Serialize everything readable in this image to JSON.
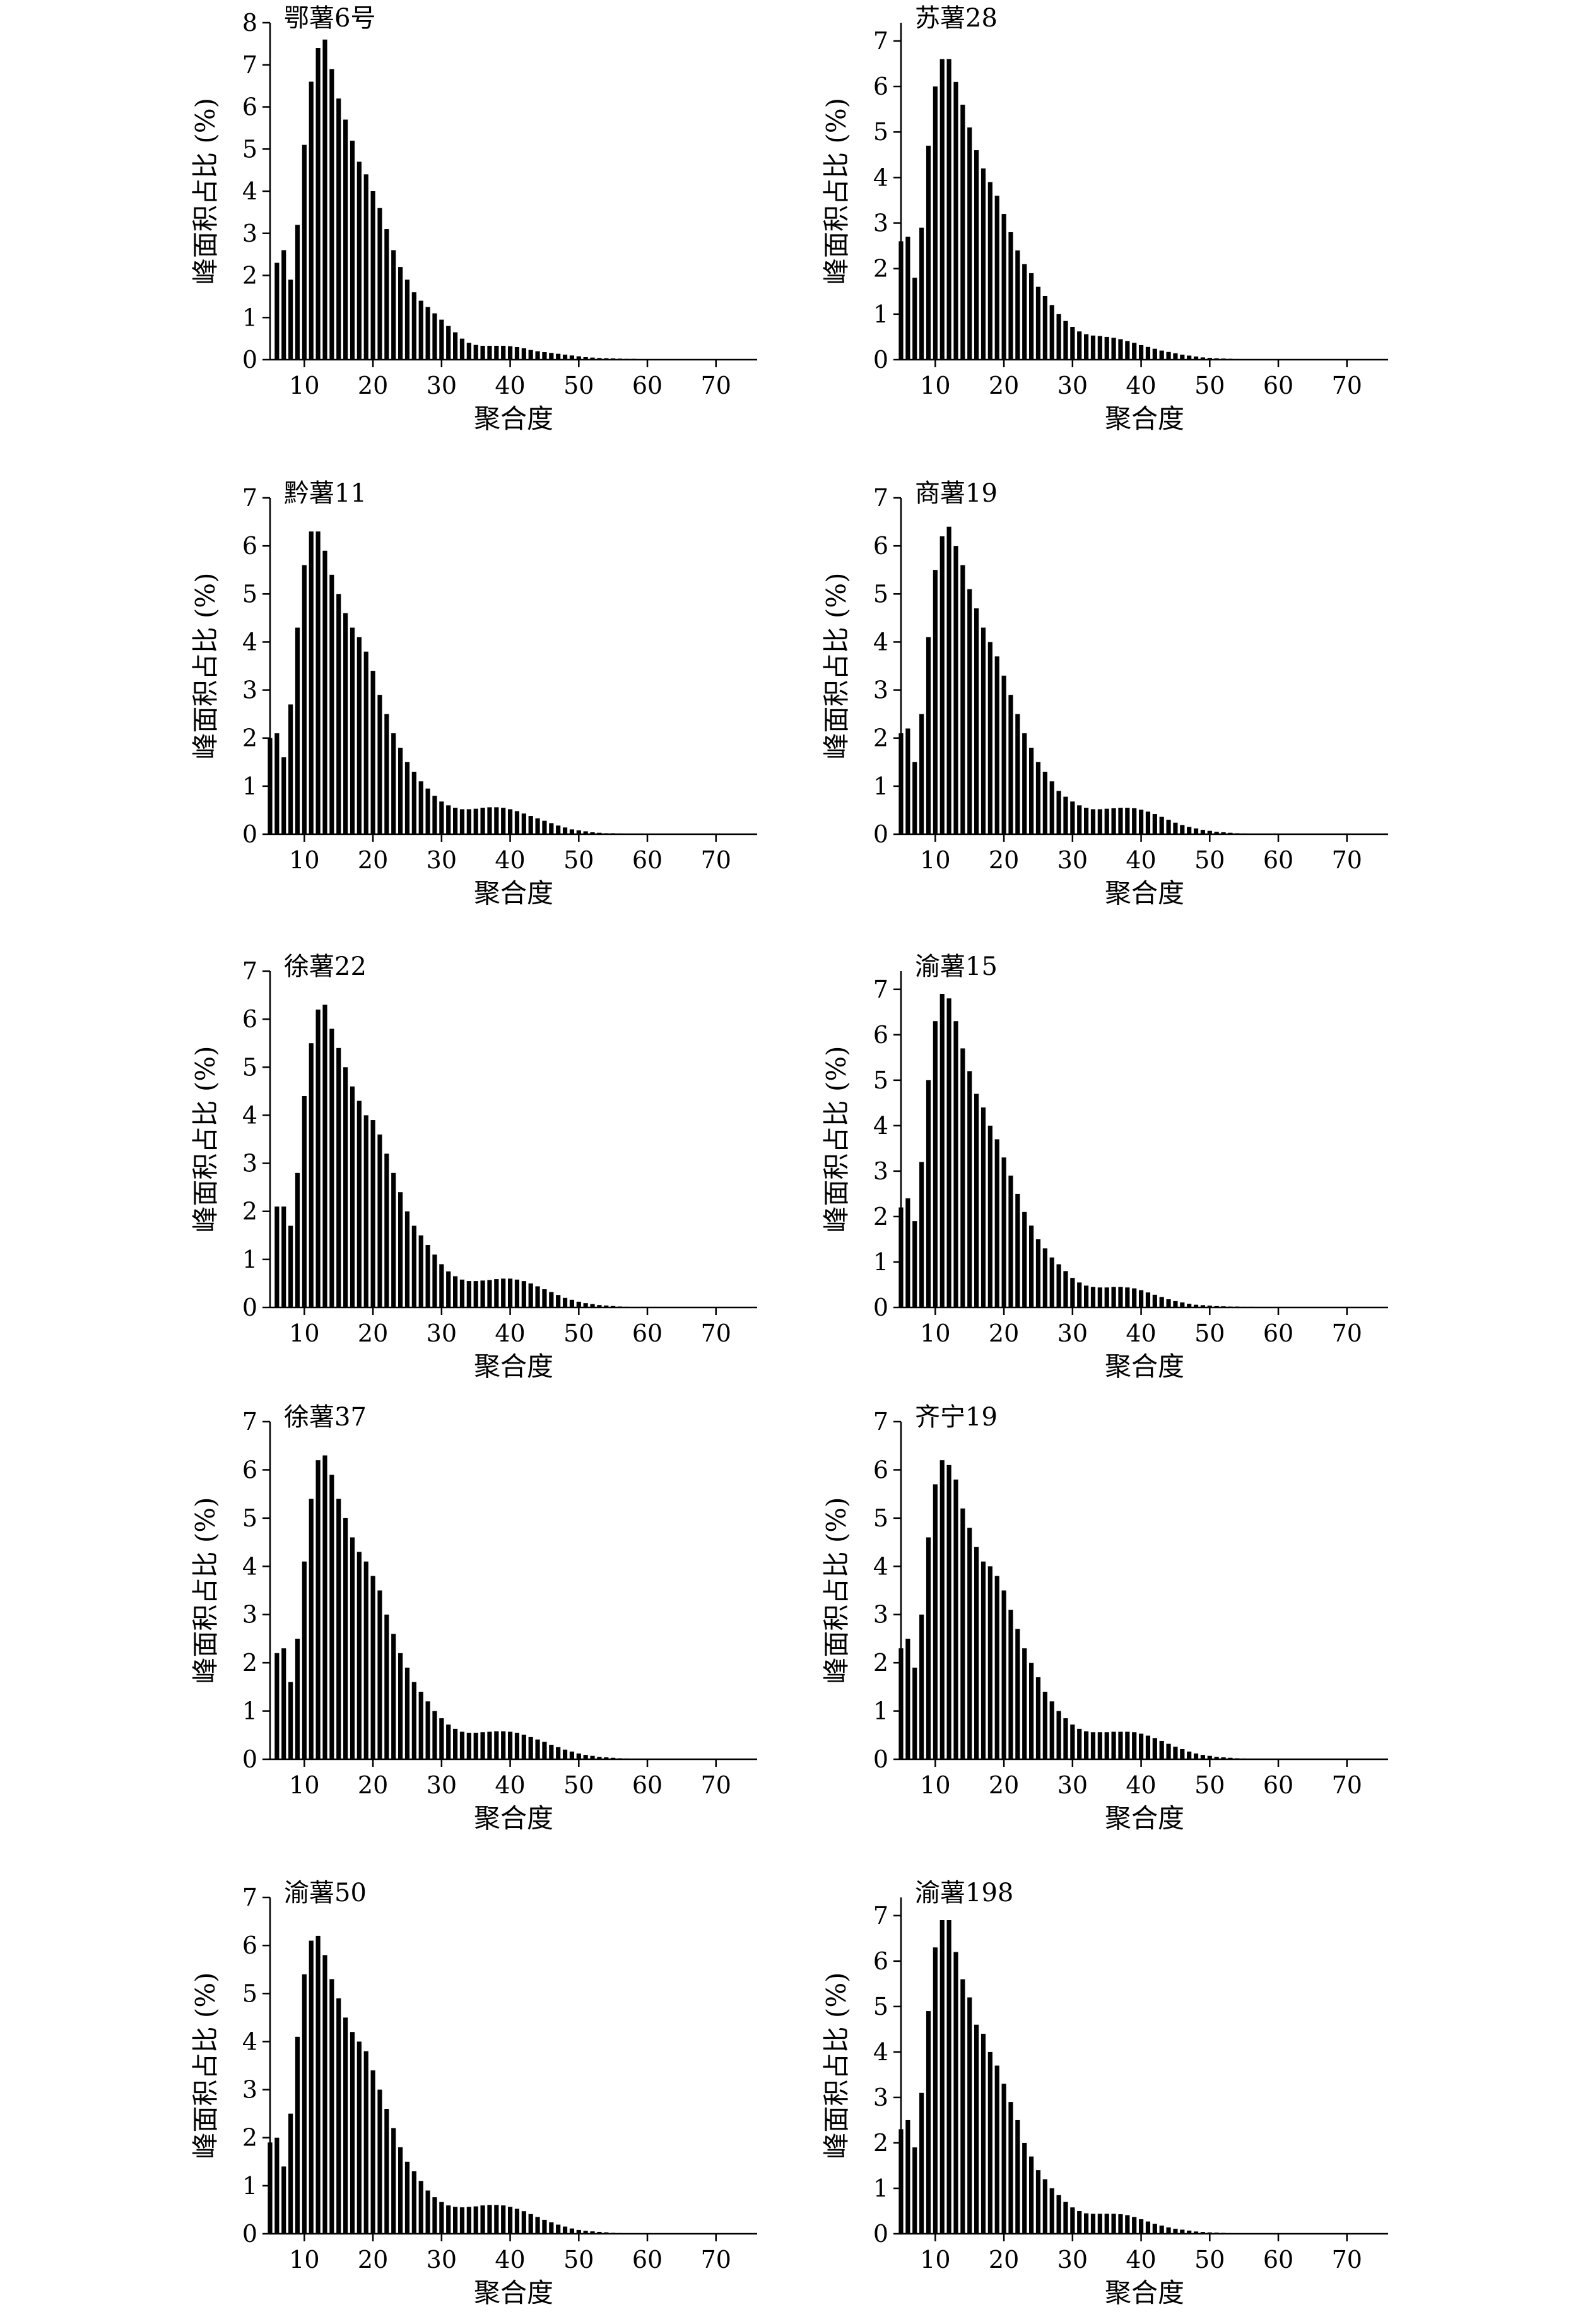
{
  "figure": {
    "panels": [
      {
        "title": "鄂薯6号",
        "xlabel": "聚合度",
        "ylabel": "峰面积占比 (%)",
        "xlim": [
          5,
          76
        ],
        "ylim": [
          0,
          8
        ],
        "xticks": [
          10,
          20,
          30,
          40,
          50,
          60,
          70
        ],
        "yticks": [
          0,
          1,
          2,
          3,
          4,
          5,
          6,
          7,
          8
        ],
        "x_start": 6,
        "values": [
          2.3,
          2.6,
          1.9,
          3.2,
          5.1,
          6.6,
          7.4,
          7.6,
          6.9,
          6.2,
          5.7,
          5.2,
          4.7,
          4.4,
          4.0,
          3.6,
          3.1,
          2.6,
          2.2,
          1.9,
          1.6,
          1.4,
          1.25,
          1.1,
          0.95,
          0.8,
          0.65,
          0.5,
          0.4,
          0.35,
          0.33,
          0.33,
          0.33,
          0.33,
          0.32,
          0.3,
          0.27,
          0.23,
          0.2,
          0.18,
          0.16,
          0.14,
          0.12,
          0.1,
          0.08,
          0.06,
          0.05,
          0.04,
          0.035,
          0.03,
          0.025,
          0.02,
          0.02,
          0.015,
          0.015,
          0.01,
          0.01,
          0.01,
          0.01,
          0.01,
          0.01,
          0.005,
          0.005,
          0.005,
          0.005,
          0.005,
          0.005,
          0.005,
          0.005,
          0.005
        ]
      },
      {
        "title": "苏薯28",
        "xlabel": "聚合度",
        "ylabel": "峰面积占比 (%)",
        "xlim": [
          5,
          76
        ],
        "ylim": [
          0,
          7.4
        ],
        "xticks": [
          10,
          20,
          30,
          40,
          50,
          60,
          70
        ],
        "yticks": [
          0,
          1,
          2,
          3,
          4,
          5,
          6,
          7
        ],
        "x_start": 5,
        "values": [
          2.6,
          2.7,
          1.8,
          2.9,
          4.7,
          6.0,
          6.6,
          6.6,
          6.1,
          5.6,
          5.1,
          4.6,
          4.2,
          3.9,
          3.6,
          3.2,
          2.8,
          2.4,
          2.1,
          1.9,
          1.6,
          1.4,
          1.2,
          1.0,
          0.85,
          0.72,
          0.62,
          0.56,
          0.53,
          0.52,
          0.5,
          0.48,
          0.45,
          0.41,
          0.37,
          0.32,
          0.28,
          0.24,
          0.2,
          0.17,
          0.14,
          0.11,
          0.09,
          0.07,
          0.05,
          0.04,
          0.03,
          0.025,
          0.02,
          0.015,
          0.01,
          0.01,
          0.01,
          0.01,
          0.01,
          0.005,
          0.005,
          0.005,
          0.005,
          0.005,
          0.005,
          0.005,
          0.005,
          0.005,
          0.005,
          0.005,
          0.005,
          0.005,
          0.005,
          0.005,
          0.005
        ]
      },
      {
        "title": "黔薯11",
        "xlabel": "聚合度",
        "ylabel": "峰面积占比 (%)",
        "xlim": [
          5,
          76
        ],
        "ylim": [
          0,
          7
        ],
        "xticks": [
          10,
          20,
          30,
          40,
          50,
          60,
          70
        ],
        "yticks": [
          0,
          1,
          2,
          3,
          4,
          5,
          6,
          7
        ],
        "x_start": 5,
        "values": [
          2.0,
          2.1,
          1.6,
          2.7,
          4.3,
          5.6,
          6.3,
          6.3,
          5.9,
          5.4,
          5.0,
          4.6,
          4.3,
          4.1,
          3.8,
          3.4,
          2.9,
          2.5,
          2.1,
          1.8,
          1.5,
          1.3,
          1.1,
          0.95,
          0.8,
          0.68,
          0.6,
          0.55,
          0.52,
          0.52,
          0.53,
          0.55,
          0.56,
          0.56,
          0.55,
          0.52,
          0.48,
          0.43,
          0.38,
          0.33,
          0.28,
          0.23,
          0.18,
          0.14,
          0.1,
          0.08,
          0.06,
          0.04,
          0.03,
          0.02,
          0.02,
          0.015,
          0.01,
          0.01,
          0.01,
          0.01,
          0.005,
          0.005,
          0.005,
          0.005,
          0.005,
          0.005,
          0.005,
          0.005,
          0.005,
          0.005,
          0.005,
          0.005,
          0.005,
          0.005,
          0.005
        ]
      },
      {
        "title": "商薯19",
        "xlabel": "聚合度",
        "ylabel": "峰面积占比 (%)",
        "xlim": [
          5,
          76
        ],
        "ylim": [
          0,
          7
        ],
        "xticks": [
          10,
          20,
          30,
          40,
          50,
          60,
          70
        ],
        "yticks": [
          0,
          1,
          2,
          3,
          4,
          5,
          6,
          7
        ],
        "x_start": 5,
        "values": [
          2.1,
          2.2,
          1.5,
          2.5,
          4.1,
          5.5,
          6.2,
          6.4,
          6.0,
          5.6,
          5.1,
          4.7,
          4.3,
          4.0,
          3.7,
          3.3,
          2.9,
          2.5,
          2.1,
          1.8,
          1.5,
          1.3,
          1.1,
          0.9,
          0.78,
          0.68,
          0.6,
          0.55,
          0.52,
          0.52,
          0.53,
          0.54,
          0.55,
          0.55,
          0.54,
          0.51,
          0.47,
          0.42,
          0.36,
          0.3,
          0.24,
          0.19,
          0.15,
          0.12,
          0.09,
          0.07,
          0.05,
          0.04,
          0.03,
          0.02,
          0.015,
          0.01,
          0.01,
          0.01,
          0.005,
          0.005,
          0.005,
          0.005,
          0.005,
          0.005,
          0.005,
          0.005,
          0.005,
          0.005,
          0.005,
          0.005,
          0.005,
          0.005,
          0.005,
          0.005,
          0.005
        ]
      },
      {
        "title": "徐薯22",
        "xlabel": "聚合度",
        "ylabel": "峰面积占比 (%)",
        "xlim": [
          5,
          76
        ],
        "ylim": [
          0,
          7
        ],
        "xticks": [
          10,
          20,
          30,
          40,
          50,
          60,
          70
        ],
        "yticks": [
          0,
          1,
          2,
          3,
          4,
          5,
          6,
          7
        ],
        "x_start": 6,
        "values": [
          2.1,
          2.1,
          1.7,
          2.8,
          4.4,
          5.5,
          6.2,
          6.3,
          5.8,
          5.4,
          5.0,
          4.6,
          4.3,
          4.0,
          3.9,
          3.6,
          3.2,
          2.8,
          2.4,
          2.0,
          1.7,
          1.5,
          1.3,
          1.1,
          0.9,
          0.75,
          0.65,
          0.58,
          0.55,
          0.55,
          0.56,
          0.57,
          0.59,
          0.6,
          0.6,
          0.58,
          0.55,
          0.5,
          0.44,
          0.38,
          0.32,
          0.26,
          0.2,
          0.16,
          0.12,
          0.09,
          0.07,
          0.05,
          0.04,
          0.03,
          0.02,
          0.015,
          0.01,
          0.01,
          0.01,
          0.005,
          0.005,
          0.005,
          0.005,
          0.005,
          0.005,
          0.005,
          0.005,
          0.005,
          0.005,
          0.005,
          0.005,
          0.005,
          0.005,
          0.005
        ]
      },
      {
        "title": "渝薯15",
        "xlabel": "聚合度",
        "ylabel": "峰面积占比 (%)",
        "xlim": [
          5,
          76
        ],
        "ylim": [
          0,
          7.4
        ],
        "xticks": [
          10,
          20,
          30,
          40,
          50,
          60,
          70
        ],
        "yticks": [
          0,
          1,
          2,
          3,
          4,
          5,
          6,
          7
        ],
        "x_start": 5,
        "values": [
          2.2,
          2.4,
          1.9,
          3.2,
          5.0,
          6.3,
          6.9,
          6.8,
          6.3,
          5.7,
          5.2,
          4.7,
          4.4,
          4.0,
          3.7,
          3.3,
          2.9,
          2.5,
          2.1,
          1.8,
          1.5,
          1.3,
          1.1,
          0.95,
          0.8,
          0.65,
          0.55,
          0.48,
          0.45,
          0.44,
          0.44,
          0.45,
          0.45,
          0.44,
          0.42,
          0.38,
          0.33,
          0.28,
          0.23,
          0.18,
          0.14,
          0.11,
          0.08,
          0.06,
          0.05,
          0.04,
          0.03,
          0.025,
          0.02,
          0.02,
          0.015,
          0.015,
          0.01,
          0.01,
          0.01,
          0.01,
          0.01,
          0.005,
          0.005,
          0.005,
          0.005,
          0.005,
          0.005,
          0.005,
          0.005,
          0.005,
          0.005,
          0.005,
          0.005,
          0.005,
          0.005
        ]
      },
      {
        "title": "徐薯37",
        "xlabel": "聚合度",
        "ylabel": "峰面积占比 (%)",
        "xlim": [
          5,
          76
        ],
        "ylim": [
          0,
          7
        ],
        "xticks": [
          10,
          20,
          30,
          40,
          50,
          60,
          70
        ],
        "yticks": [
          0,
          1,
          2,
          3,
          4,
          5,
          6,
          7
        ],
        "x_start": 6,
        "values": [
          2.2,
          2.3,
          1.6,
          2.5,
          4.1,
          5.4,
          6.2,
          6.3,
          5.9,
          5.4,
          5.0,
          4.6,
          4.3,
          4.1,
          3.8,
          3.5,
          3.0,
          2.6,
          2.2,
          1.9,
          1.6,
          1.4,
          1.2,
          1.0,
          0.85,
          0.72,
          0.63,
          0.57,
          0.55,
          0.55,
          0.56,
          0.57,
          0.58,
          0.58,
          0.57,
          0.55,
          0.51,
          0.46,
          0.41,
          0.36,
          0.3,
          0.25,
          0.2,
          0.16,
          0.12,
          0.09,
          0.07,
          0.05,
          0.04,
          0.03,
          0.02,
          0.015,
          0.01,
          0.01,
          0.01,
          0.005,
          0.005,
          0.005,
          0.005,
          0.005,
          0.005,
          0.005,
          0.005,
          0.005,
          0.005,
          0.005,
          0.005,
          0.005,
          0.005,
          0.005
        ]
      },
      {
        "title": "齐宁19",
        "xlabel": "聚合度",
        "ylabel": "峰面积占比 (%)",
        "xlim": [
          5,
          76
        ],
        "ylim": [
          0,
          7
        ],
        "xticks": [
          10,
          20,
          30,
          40,
          50,
          60,
          70
        ],
        "yticks": [
          0,
          1,
          2,
          3,
          4,
          5,
          6,
          7
        ],
        "x_start": 5,
        "values": [
          2.3,
          2.5,
          1.9,
          3.0,
          4.6,
          5.7,
          6.2,
          6.1,
          5.8,
          5.2,
          4.8,
          4.4,
          4.1,
          4.0,
          3.8,
          3.5,
          3.1,
          2.7,
          2.3,
          2.0,
          1.7,
          1.4,
          1.2,
          1.0,
          0.85,
          0.72,
          0.63,
          0.58,
          0.56,
          0.56,
          0.56,
          0.57,
          0.57,
          0.57,
          0.56,
          0.53,
          0.49,
          0.44,
          0.38,
          0.32,
          0.26,
          0.21,
          0.16,
          0.12,
          0.09,
          0.07,
          0.05,
          0.04,
          0.03,
          0.02,
          0.015,
          0.01,
          0.01,
          0.01,
          0.005,
          0.005,
          0.005,
          0.005,
          0.005,
          0.005,
          0.005,
          0.005,
          0.005,
          0.005,
          0.005,
          0.005,
          0.005,
          0.005,
          0.005,
          0.005,
          0.005
        ]
      },
      {
        "title": "渝薯50",
        "xlabel": "聚合度",
        "ylabel": "峰面积占比 (%)",
        "xlim": [
          5,
          76
        ],
        "ylim": [
          0,
          7
        ],
        "xticks": [
          10,
          20,
          30,
          40,
          50,
          60,
          70
        ],
        "yticks": [
          0,
          1,
          2,
          3,
          4,
          5,
          6,
          7
        ],
        "x_start": 5,
        "values": [
          1.9,
          2.0,
          1.4,
          2.5,
          4.1,
          5.4,
          6.1,
          6.2,
          5.8,
          5.3,
          4.9,
          4.5,
          4.2,
          4.0,
          3.8,
          3.4,
          3.0,
          2.6,
          2.2,
          1.8,
          1.5,
          1.3,
          1.1,
          0.9,
          0.76,
          0.66,
          0.59,
          0.56,
          0.55,
          0.56,
          0.57,
          0.59,
          0.6,
          0.6,
          0.59,
          0.56,
          0.52,
          0.47,
          0.41,
          0.35,
          0.29,
          0.24,
          0.19,
          0.15,
          0.11,
          0.08,
          0.06,
          0.05,
          0.04,
          0.03,
          0.02,
          0.015,
          0.01,
          0.01,
          0.005,
          0.005,
          0.005,
          0.005,
          0.005,
          0.005,
          0.005,
          0.005,
          0.005,
          0.005,
          0.005,
          0.005,
          0.005,
          0.005,
          0.005,
          0.005,
          0.005
        ]
      },
      {
        "title": "渝薯198",
        "xlabel": "聚合度",
        "ylabel": "峰面积占比 (%)",
        "xlim": [
          5,
          76
        ],
        "ylim": [
          0,
          7.4
        ],
        "xticks": [
          10,
          20,
          30,
          40,
          50,
          60,
          70
        ],
        "yticks": [
          0,
          1,
          2,
          3,
          4,
          5,
          6,
          7
        ],
        "x_start": 5,
        "values": [
          2.3,
          2.5,
          1.9,
          3.1,
          4.9,
          6.3,
          6.9,
          6.9,
          6.2,
          5.6,
          5.2,
          4.6,
          4.4,
          4.0,
          3.7,
          3.3,
          2.9,
          2.5,
          2.0,
          1.7,
          1.4,
          1.2,
          1.0,
          0.85,
          0.7,
          0.58,
          0.5,
          0.45,
          0.44,
          0.44,
          0.44,
          0.44,
          0.43,
          0.41,
          0.37,
          0.32,
          0.27,
          0.22,
          0.18,
          0.14,
          0.11,
          0.09,
          0.07,
          0.05,
          0.04,
          0.03,
          0.025,
          0.02,
          0.015,
          0.01,
          0.01,
          0.01,
          0.005,
          0.005,
          0.005,
          0.005,
          0.005,
          0.005,
          0.005,
          0.005,
          0.005,
          0.005,
          0.005,
          0.005,
          0.005,
          0.005,
          0.005,
          0.005,
          0.005,
          0.005,
          0.005
        ]
      }
    ]
  },
  "chart_data": [
    {
      "type": "bar",
      "title": "鄂薯6号",
      "xlabel": "聚合度",
      "ylabel": "峰面积占比 (%)",
      "xlim": [
        5,
        76
      ],
      "ylim": [
        0,
        8
      ],
      "grid": false,
      "legend": "none"
    },
    {
      "type": "bar",
      "title": "苏薯28",
      "xlabel": "聚合度",
      "ylabel": "峰面积占比 (%)",
      "xlim": [
        5,
        76
      ],
      "ylim": [
        0,
        7.4
      ],
      "grid": false,
      "legend": "none"
    },
    {
      "type": "bar",
      "title": "黔薯11",
      "xlabel": "聚合度",
      "ylabel": "峰面积占比 (%)",
      "xlim": [
        5,
        76
      ],
      "ylim": [
        0,
        7
      ],
      "grid": false,
      "legend": "none"
    },
    {
      "type": "bar",
      "title": "商薯19",
      "xlabel": "聚合度",
      "ylabel": "峰面积占比 (%)",
      "xlim": [
        5,
        76
      ],
      "ylim": [
        0,
        7
      ],
      "grid": false,
      "legend": "none"
    },
    {
      "type": "bar",
      "title": "徐薯22",
      "xlabel": "聚合度",
      "ylabel": "峰面积占比 (%)",
      "xlim": [
        5,
        76
      ],
      "ylim": [
        0,
        7
      ],
      "grid": false,
      "legend": "none"
    },
    {
      "type": "bar",
      "title": "渝薯15",
      "xlabel": "聚合度",
      "ylabel": "峰面积占比 (%)",
      "xlim": [
        5,
        76
      ],
      "ylim": [
        0,
        7.4
      ],
      "grid": false,
      "legend": "none"
    },
    {
      "type": "bar",
      "title": "徐薯37",
      "xlabel": "聚合度",
      "ylabel": "峰面积占比 (%)",
      "xlim": [
        5,
        76
      ],
      "ylim": [
        0,
        7
      ],
      "grid": false,
      "legend": "none"
    },
    {
      "type": "bar",
      "title": "齐宁19",
      "xlabel": "聚合度",
      "ylabel": "峰面积占比 (%)",
      "xlim": [
        5,
        76
      ],
      "ylim": [
        0,
        7
      ],
      "grid": false,
      "legend": "none"
    },
    {
      "type": "bar",
      "title": "渝薯50",
      "xlabel": "聚合度",
      "ylabel": "峰面积占比 (%)",
      "xlim": [
        5,
        76
      ],
      "ylim": [
        0,
        7
      ],
      "grid": false,
      "legend": "none"
    },
    {
      "type": "bar",
      "title": "渝薯198",
      "xlabel": "聚合度",
      "ylabel": "峰面积占比 (%)",
      "xlim": [
        5,
        76
      ],
      "ylim": [
        0,
        7.4
      ],
      "grid": false,
      "legend": "none"
    }
  ]
}
